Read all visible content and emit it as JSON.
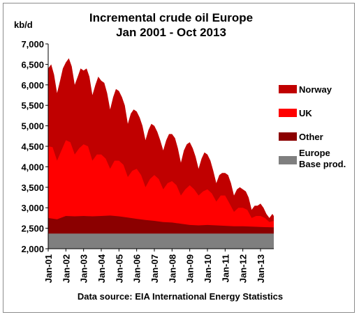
{
  "chart_data": {
    "type": "area",
    "stacked": true,
    "title": [
      "Incremental crude oil Europe",
      "Jan 2001 - Oct 2013"
    ],
    "ylabel": "kb/d",
    "ylim": [
      2000,
      7000
    ],
    "yticks": [
      "2,000",
      "2,500",
      "3,000",
      "3,500",
      "4,000",
      "4,500",
      "5,000",
      "5,500",
      "6,000",
      "6,500",
      "7,000"
    ],
    "xticks": [
      "Jan-01",
      "Jan-02",
      "Jan-03",
      "Jan-04",
      "Jan-05",
      "Jan-06",
      "Jan-07",
      "Jan-08",
      "Jan-09",
      "Jan-10",
      "Jan-11",
      "Jan-12",
      "Jan-13"
    ],
    "x_start": "2001-01",
    "x_end": "2013-10",
    "source": "Data source: EIA International Energy Statistics",
    "series": [
      {
        "name": "Europe Base prod.",
        "color": "#7f7f7f",
        "cumulative_top": [
          [
            2001.0,
            2370
          ],
          [
            2013.75,
            2370
          ]
        ]
      },
      {
        "name": "Other",
        "color": "#8b0000",
        "cumulative_top": [
          [
            2001.0,
            2750
          ],
          [
            2001.5,
            2720
          ],
          [
            2002.0,
            2800
          ],
          [
            2002.5,
            2790
          ],
          [
            2003.0,
            2800
          ],
          [
            2003.5,
            2790
          ],
          [
            2004.0,
            2800
          ],
          [
            2004.5,
            2810
          ],
          [
            2005.0,
            2790
          ],
          [
            2005.5,
            2760
          ],
          [
            2006.0,
            2730
          ],
          [
            2006.5,
            2700
          ],
          [
            2007.0,
            2680
          ],
          [
            2007.5,
            2650
          ],
          [
            2008.0,
            2640
          ],
          [
            2008.5,
            2610
          ],
          [
            2009.0,
            2580
          ],
          [
            2009.5,
            2570
          ],
          [
            2010.0,
            2580
          ],
          [
            2010.5,
            2570
          ],
          [
            2011.0,
            2560
          ],
          [
            2011.5,
            2550
          ],
          [
            2012.0,
            2550
          ],
          [
            2012.5,
            2540
          ],
          [
            2013.0,
            2530
          ],
          [
            2013.75,
            2520
          ]
        ]
      },
      {
        "name": "UK",
        "color": "#ff0000",
        "cumulative_top": [
          [
            2001.0,
            4500
          ],
          [
            2001.25,
            4480
          ],
          [
            2001.5,
            4150
          ],
          [
            2001.75,
            4400
          ],
          [
            2002.0,
            4650
          ],
          [
            2002.25,
            4600
          ],
          [
            2002.5,
            4300
          ],
          [
            2002.75,
            4450
          ],
          [
            2003.0,
            4550
          ],
          [
            2003.25,
            4500
          ],
          [
            2003.5,
            4150
          ],
          [
            2003.75,
            4300
          ],
          [
            2004.0,
            4300
          ],
          [
            2004.25,
            4200
          ],
          [
            2004.5,
            3950
          ],
          [
            2004.75,
            4150
          ],
          [
            2005.0,
            4150
          ],
          [
            2005.25,
            4050
          ],
          [
            2005.5,
            3750
          ],
          [
            2005.75,
            3900
          ],
          [
            2006.0,
            3950
          ],
          [
            2006.25,
            3800
          ],
          [
            2006.5,
            3500
          ],
          [
            2006.75,
            3700
          ],
          [
            2007.0,
            3800
          ],
          [
            2007.25,
            3700
          ],
          [
            2007.5,
            3450
          ],
          [
            2007.75,
            3600
          ],
          [
            2008.0,
            3650
          ],
          [
            2008.25,
            3550
          ],
          [
            2008.5,
            3300
          ],
          [
            2008.75,
            3450
          ],
          [
            2009.0,
            3550
          ],
          [
            2009.25,
            3450
          ],
          [
            2009.5,
            3300
          ],
          [
            2009.75,
            3400
          ],
          [
            2010.0,
            3450
          ],
          [
            2010.25,
            3350
          ],
          [
            2010.5,
            3150
          ],
          [
            2010.75,
            3300
          ],
          [
            2011.0,
            3300
          ],
          [
            2011.25,
            3100
          ],
          [
            2011.5,
            2900
          ],
          [
            2011.75,
            3000
          ],
          [
            2012.0,
            3000
          ],
          [
            2012.25,
            2950
          ],
          [
            2012.5,
            2750
          ],
          [
            2012.75,
            2800
          ],
          [
            2013.0,
            2800
          ],
          [
            2013.25,
            2750
          ],
          [
            2013.5,
            2650
          ],
          [
            2013.75,
            2680
          ]
        ]
      },
      {
        "name": "Norway",
        "color": "#c00000",
        "cumulative_top": [
          [
            2001.0,
            6400
          ],
          [
            2001.17,
            6500
          ],
          [
            2001.33,
            6250
          ],
          [
            2001.5,
            5800
          ],
          [
            2001.67,
            6100
          ],
          [
            2001.83,
            6400
          ],
          [
            2002.0,
            6550
          ],
          [
            2002.17,
            6650
          ],
          [
            2002.33,
            6450
          ],
          [
            2002.5,
            6000
          ],
          [
            2002.67,
            6200
          ],
          [
            2002.83,
            6400
          ],
          [
            2003.0,
            6350
          ],
          [
            2003.17,
            6400
          ],
          [
            2003.33,
            6200
          ],
          [
            2003.5,
            5750
          ],
          [
            2003.67,
            6000
          ],
          [
            2003.83,
            6200
          ],
          [
            2004.0,
            6100
          ],
          [
            2004.17,
            6050
          ],
          [
            2004.33,
            5800
          ],
          [
            2004.5,
            5400
          ],
          [
            2004.67,
            5700
          ],
          [
            2004.83,
            5900
          ],
          [
            2005.0,
            5850
          ],
          [
            2005.17,
            5700
          ],
          [
            2005.33,
            5500
          ],
          [
            2005.5,
            5050
          ],
          [
            2005.67,
            5300
          ],
          [
            2005.83,
            5400
          ],
          [
            2006.0,
            5350
          ],
          [
            2006.17,
            5200
          ],
          [
            2006.33,
            5000
          ],
          [
            2006.5,
            4650
          ],
          [
            2006.67,
            4900
          ],
          [
            2006.83,
            5050
          ],
          [
            2007.0,
            5000
          ],
          [
            2007.17,
            4850
          ],
          [
            2007.33,
            4650
          ],
          [
            2007.5,
            4400
          ],
          [
            2007.67,
            4650
          ],
          [
            2007.83,
            4800
          ],
          [
            2008.0,
            4800
          ],
          [
            2008.17,
            4700
          ],
          [
            2008.33,
            4450
          ],
          [
            2008.5,
            4100
          ],
          [
            2008.67,
            4400
          ],
          [
            2008.83,
            4550
          ],
          [
            2009.0,
            4600
          ],
          [
            2009.17,
            4450
          ],
          [
            2009.33,
            4250
          ],
          [
            2009.5,
            3950
          ],
          [
            2009.67,
            4200
          ],
          [
            2009.83,
            4350
          ],
          [
            2010.0,
            4300
          ],
          [
            2010.17,
            4150
          ],
          [
            2010.33,
            3900
          ],
          [
            2010.5,
            3600
          ],
          [
            2010.67,
            3800
          ],
          [
            2010.83,
            3850
          ],
          [
            2011.0,
            3850
          ],
          [
            2011.17,
            3800
          ],
          [
            2011.33,
            3600
          ],
          [
            2011.5,
            3300
          ],
          [
            2011.67,
            3450
          ],
          [
            2011.83,
            3500
          ],
          [
            2012.0,
            3450
          ],
          [
            2012.17,
            3400
          ],
          [
            2012.33,
            3250
          ],
          [
            2012.5,
            2950
          ],
          [
            2012.67,
            3050
          ],
          [
            2012.83,
            3050
          ],
          [
            2013.0,
            3100
          ],
          [
            2013.17,
            3000
          ],
          [
            2013.33,
            2850
          ],
          [
            2013.5,
            2750
          ],
          [
            2013.67,
            2850
          ],
          [
            2013.75,
            2800
          ]
        ]
      }
    ],
    "legend": [
      {
        "label": "Norway",
        "color": "#c00000"
      },
      {
        "label": "UK",
        "color": "#ff0000"
      },
      {
        "label": "Other",
        "color": "#8b0000"
      },
      {
        "label": "Europe Base prod.",
        "label_lines": [
          "Europe",
          "Base prod."
        ],
        "color": "#7f7f7f"
      }
    ]
  }
}
